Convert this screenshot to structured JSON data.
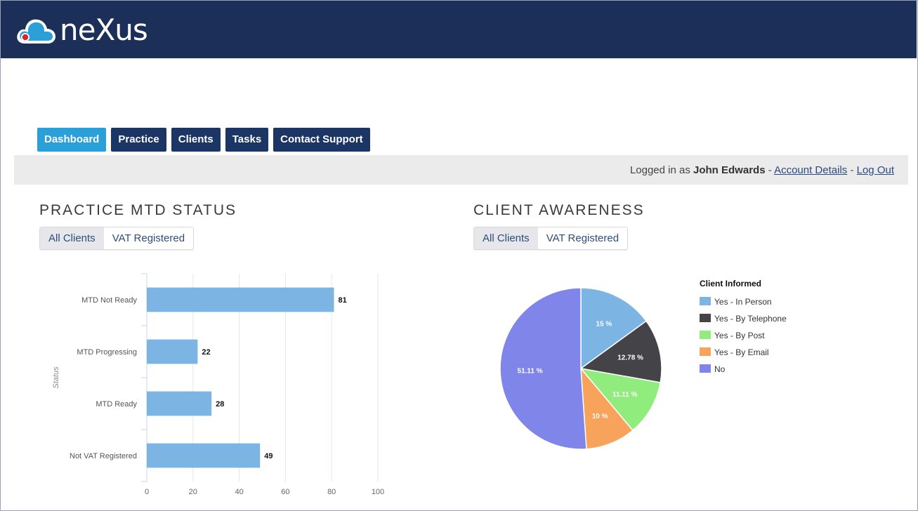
{
  "app": {
    "logo_text": "neXus"
  },
  "nav": {
    "items": [
      {
        "label": "Dashboard",
        "active": true
      },
      {
        "label": "Practice",
        "active": false
      },
      {
        "label": "Clients",
        "active": false
      },
      {
        "label": "Tasks",
        "active": false
      },
      {
        "label": "Contact Support",
        "active": false
      }
    ]
  },
  "session": {
    "prefix": "Logged in as ",
    "user_name": "John Edwards",
    "sep1": " - ",
    "account_link": "Account Details",
    "sep2": " - ",
    "logout_link": "Log Out"
  },
  "practice_mtd": {
    "title": "PRACTICE MTD STATUS",
    "filters": [
      {
        "label": "All Clients",
        "active": true
      },
      {
        "label": "VAT Registered",
        "active": false
      }
    ]
  },
  "client_awareness": {
    "title": "CLIENT AWARENESS",
    "filters": [
      {
        "label": "All Clients",
        "active": true
      },
      {
        "label": "VAT Registered",
        "active": false
      }
    ]
  },
  "colors": {
    "header_bg": "#1b2f59",
    "nav_active": "#2a9fd8",
    "nav_default": "#1b3564",
    "bar": "#7cb5e4"
  },
  "chart_data": [
    {
      "type": "bar",
      "orientation": "horizontal",
      "categories": [
        "MTD Not Ready",
        "MTD Progressing",
        "MTD Ready",
        "Not VAT Registered"
      ],
      "values": [
        81,
        22,
        28,
        49
      ],
      "ylabel": "Status",
      "xlim": [
        0,
        100
      ],
      "xticks": [
        0,
        20,
        40,
        60,
        80,
        100
      ],
      "grid": true,
      "color": "#7cb5e4"
    },
    {
      "type": "pie",
      "legend_title": "Client Informed",
      "legend_position": "right",
      "slices": [
        {
          "label": "Yes - In Person",
          "value": 15,
          "display": "15 %",
          "color": "#7cb5e4"
        },
        {
          "label": "Yes - By Telephone",
          "value": 12.78,
          "display": "12.78 %",
          "color": "#434348"
        },
        {
          "label": "Yes - By Post",
          "value": 11.11,
          "display": "11.11 %",
          "color": "#90ed7d"
        },
        {
          "label": "Yes - By Email",
          "value": 10,
          "display": "10 %",
          "color": "#f7a35c"
        },
        {
          "label": "No",
          "value": 51.11,
          "display": "51.11 %",
          "color": "#8085e9"
        }
      ]
    }
  ]
}
